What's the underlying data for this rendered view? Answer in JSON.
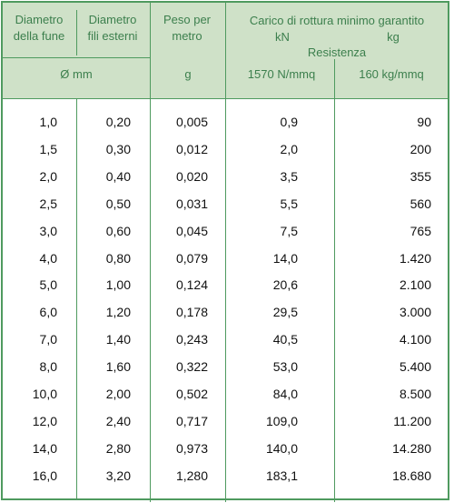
{
  "header": {
    "diametro_fune": [
      "Diametro",
      "della fune"
    ],
    "diametro_fili": [
      "Diametro",
      "fili esterni"
    ],
    "peso": [
      "Peso per",
      "metro"
    ],
    "carico_title": "Carico di rottura minimo garantito",
    "kn": "kN",
    "kg": "kg",
    "resistenza": "Resistenza",
    "unit_mm": "Ø mm",
    "unit_g": "g",
    "res_nmmq": "1570 N/mmq",
    "res_kgmmq": "160 kg/mmq"
  },
  "rows": [
    [
      "1,0",
      "0,20",
      "0,005",
      "0,9",
      "90"
    ],
    [
      "1,5",
      "0,30",
      "0,012",
      "2,0",
      "200"
    ],
    [
      "2,0",
      "0,40",
      "0,020",
      "3,5",
      "355"
    ],
    [
      "2,5",
      "0,50",
      "0,031",
      "5,5",
      "560"
    ],
    [
      "3,0",
      "0,60",
      "0,045",
      "7,5",
      "765"
    ],
    [
      "4,0",
      "0,80",
      "0,079",
      "14,0",
      "1.420"
    ],
    [
      "5,0",
      "1,00",
      "0,124",
      "20,6",
      "2.100"
    ],
    [
      "6,0",
      "1,20",
      "0,178",
      "29,5",
      "3.000"
    ],
    [
      "7,0",
      "1,40",
      "0,243",
      "40,5",
      "4.100"
    ],
    [
      "8,0",
      "1,60",
      "0,322",
      "53,0",
      "5.400"
    ],
    [
      "10,0",
      "2,00",
      "0,502",
      "84,0",
      "8.500"
    ],
    [
      "12,0",
      "2,40",
      "0,717",
      "109,0",
      "11.200"
    ],
    [
      "14,0",
      "2,80",
      "0,973",
      "140,0",
      "14.280"
    ],
    [
      "16,0",
      "3,20",
      "1,280",
      "183,1",
      "18.680"
    ]
  ],
  "colors": {
    "border": "#4f9a5f",
    "header_bg": "#cfe1c8",
    "header_text": "#3c7f4d"
  }
}
